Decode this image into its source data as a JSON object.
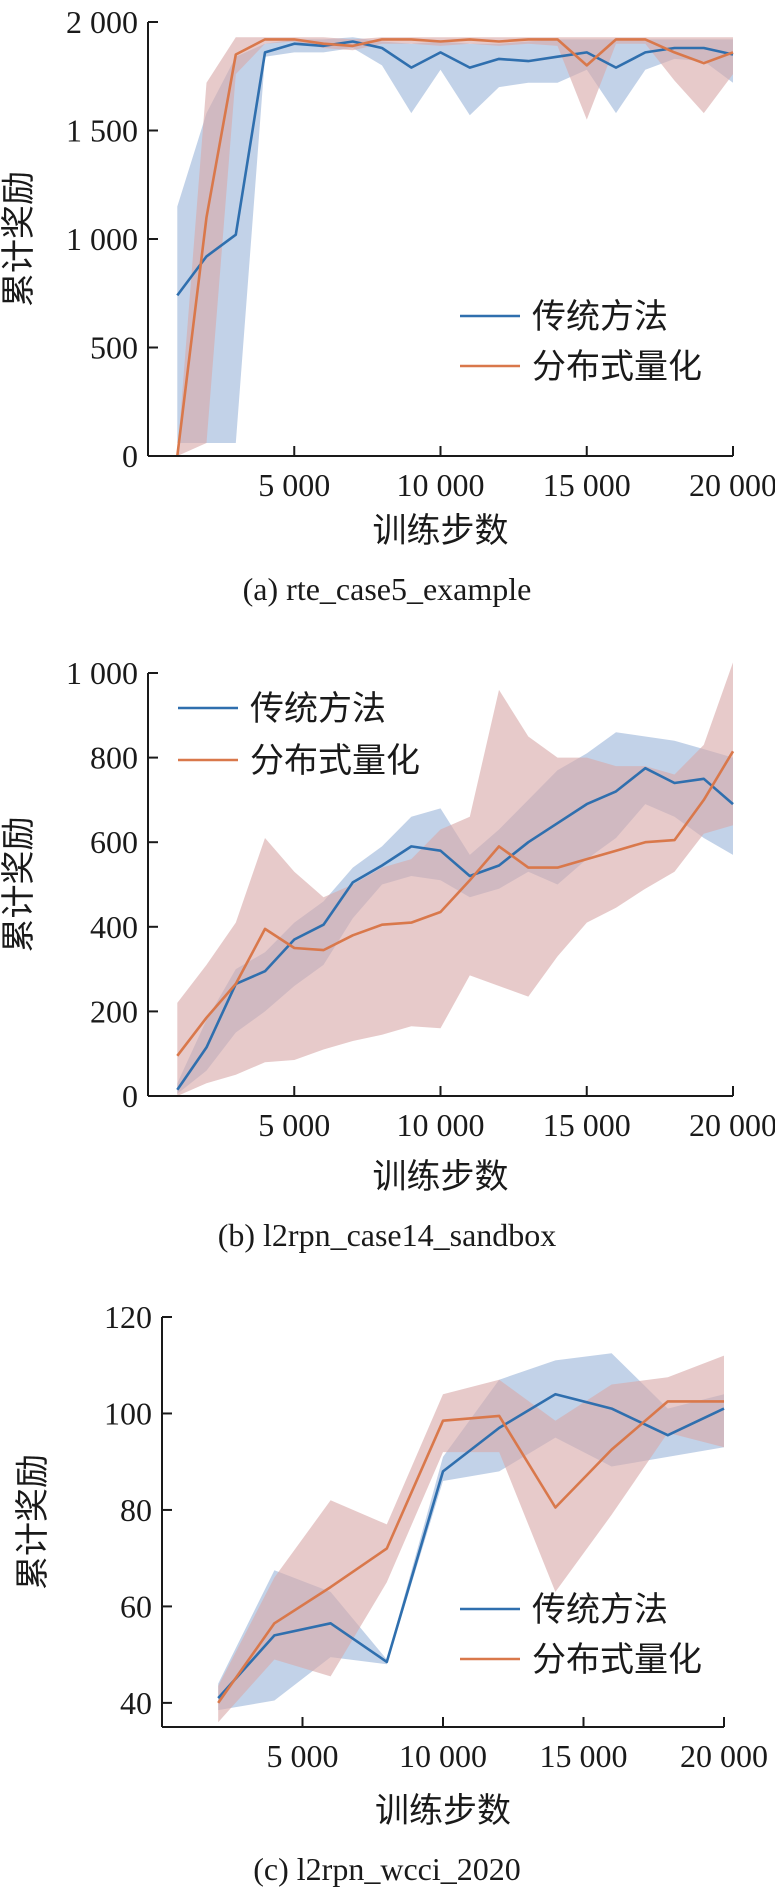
{
  "colors": {
    "traditional": "#2F6FAE",
    "traditional_band": "#9DB6DA",
    "distributional": "#D9784B",
    "distributional_band": "#D8AAAA",
    "axis": "#1a1a1a"
  },
  "chart_data": [
    {
      "type": "line",
      "caption": "(a) rte_case5_example",
      "xlabel": "训练步数",
      "ylabel": "累计奖励",
      "xlim": [
        0,
        20000
      ],
      "ylim": [
        0,
        2000
      ],
      "xticks": [
        5000,
        10000,
        15000,
        20000
      ],
      "xtick_labels": [
        "5 000",
        "10 000",
        "15 000",
        "20 000"
      ],
      "yticks": [
        0,
        500,
        1000,
        1500,
        2000
      ],
      "ytick_labels": [
        "0",
        "500",
        "1 000",
        "1 500",
        "2 000"
      ],
      "legend_position": "center-right",
      "series": [
        {
          "name": "传统方法",
          "x": [
            1000,
            2000,
            3000,
            4000,
            5000,
            6000,
            7000,
            8000,
            9000,
            10000,
            11000,
            12000,
            13000,
            14000,
            15000,
            16000,
            17000,
            18000,
            19000,
            20000
          ],
          "y": [
            740,
            920,
            1020,
            1860,
            1900,
            1890,
            1910,
            1880,
            1790,
            1860,
            1790,
            1830,
            1820,
            1840,
            1860,
            1790,
            1860,
            1880,
            1880,
            1850
          ],
          "lower": [
            60,
            60,
            60,
            1840,
            1860,
            1860,
            1880,
            1800,
            1580,
            1780,
            1570,
            1700,
            1720,
            1720,
            1780,
            1580,
            1780,
            1830,
            1820,
            1720
          ],
          "upper": [
            1150,
            1580,
            1840,
            1900,
            1920,
            1920,
            1930,
            1910,
            1900,
            1910,
            1900,
            1900,
            1910,
            1920,
            1920,
            1920,
            1920,
            1920,
            1920,
            1920
          ]
        },
        {
          "name": "分布式量化",
          "x": [
            1000,
            2000,
            3000,
            4000,
            5000,
            6000,
            7000,
            8000,
            9000,
            10000,
            11000,
            12000,
            13000,
            14000,
            15000,
            16000,
            17000,
            18000,
            19000,
            20000
          ],
          "y": [
            0,
            1100,
            1850,
            1920,
            1920,
            1900,
            1890,
            1920,
            1920,
            1910,
            1920,
            1910,
            1920,
            1920,
            1800,
            1920,
            1920,
            1860,
            1810,
            1860
          ],
          "lower": [
            0,
            60,
            1760,
            1900,
            1910,
            1880,
            1870,
            1900,
            1900,
            1890,
            1900,
            1890,
            1900,
            1890,
            1550,
            1900,
            1900,
            1730,
            1580,
            1760
          ],
          "upper": [
            0,
            1720,
            1930,
            1930,
            1930,
            1930,
            1920,
            1930,
            1930,
            1930,
            1930,
            1930,
            1930,
            1930,
            1930,
            1930,
            1930,
            1930,
            1930,
            1930
          ]
        }
      ]
    },
    {
      "type": "line",
      "caption": "(b) l2rpn_case14_sandbox",
      "xlabel": "训练步数",
      "ylabel": "累计奖励",
      "xlim": [
        0,
        20000
      ],
      "ylim": [
        0,
        1000
      ],
      "xticks": [
        5000,
        10000,
        15000,
        20000
      ],
      "xtick_labels": [
        "5 000",
        "10 000",
        "15 000",
        "20 000"
      ],
      "yticks": [
        0,
        200,
        400,
        600,
        800,
        1000
      ],
      "ytick_labels": [
        "0",
        "200",
        "400",
        "600",
        "800",
        "1 000"
      ],
      "legend_position": "top-left",
      "series": [
        {
          "name": "传统方法",
          "x": [
            1000,
            2000,
            3000,
            4000,
            5000,
            6000,
            7000,
            8000,
            9000,
            10000,
            11000,
            12000,
            13000,
            14000,
            15000,
            16000,
            17000,
            18000,
            19000,
            20000
          ],
          "y": [
            15,
            115,
            265,
            295,
            370,
            405,
            505,
            545,
            590,
            580,
            520,
            545,
            600,
            645,
            690,
            720,
            775,
            740,
            750,
            690
          ],
          "lower": [
            5,
            60,
            150,
            200,
            260,
            310,
            420,
            500,
            520,
            510,
            470,
            490,
            530,
            500,
            560,
            610,
            690,
            660,
            610,
            570
          ],
          "upper": [
            30,
            180,
            300,
            340,
            410,
            460,
            540,
            590,
            660,
            680,
            570,
            630,
            700,
            770,
            810,
            860,
            850,
            840,
            820,
            800
          ]
        },
        {
          "name": "分布式量化",
          "x": [
            1000,
            2000,
            3000,
            4000,
            5000,
            6000,
            7000,
            8000,
            9000,
            10000,
            11000,
            12000,
            13000,
            14000,
            15000,
            16000,
            17000,
            18000,
            19000,
            20000
          ],
          "y": [
            95,
            185,
            265,
            395,
            350,
            345,
            380,
            405,
            410,
            435,
            510,
            590,
            540,
            540,
            560,
            580,
            600,
            605,
            700,
            815
          ],
          "lower": [
            0,
            30,
            50,
            80,
            85,
            110,
            130,
            145,
            165,
            160,
            285,
            260,
            235,
            330,
            410,
            445,
            490,
            530,
            620,
            640
          ],
          "upper": [
            220,
            310,
            410,
            610,
            530,
            470,
            500,
            540,
            560,
            630,
            660,
            960,
            850,
            800,
            800,
            780,
            780,
            760,
            830,
            1025
          ]
        }
      ]
    },
    {
      "type": "line",
      "caption": "(c) l2rpn_wcci_2020",
      "xlabel": "训练步数",
      "ylabel": "累计奖励",
      "xlim": [
        0,
        20000
      ],
      "ylim": [
        35,
        120
      ],
      "xticks": [
        5000,
        10000,
        15000,
        20000
      ],
      "xtick_labels": [
        "5 000",
        "10 000",
        "15 000",
        "20 000"
      ],
      "yticks": [
        40,
        60,
        80,
        100,
        120
      ],
      "ytick_labels": [
        "40",
        "60",
        "80",
        "100",
        "120"
      ],
      "legend_position": "bottom-right",
      "series": [
        {
          "name": "传统方法",
          "x": [
            2000,
            4000,
            6000,
            8000,
            10000,
            12000,
            14000,
            16000,
            18000,
            20000
          ],
          "y": [
            41,
            54,
            56.5,
            48.5,
            88,
            97,
            104,
            101,
            95.5,
            101
          ],
          "lower": [
            38.5,
            40.5,
            49.5,
            48,
            86,
            88,
            95,
            89,
            91,
            93
          ],
          "upper": [
            44,
            67.5,
            63,
            49,
            91,
            107,
            111,
            112.5,
            101,
            104
          ]
        },
        {
          "name": "分布式量化",
          "x": [
            2000,
            4000,
            6000,
            8000,
            10000,
            12000,
            14000,
            16000,
            18000,
            20000
          ],
          "y": [
            40,
            56.5,
            64,
            72,
            98.5,
            99.5,
            80.5,
            92.5,
            102.5,
            102.5
          ],
          "lower": [
            36,
            49,
            45.5,
            65,
            92,
            92,
            63,
            79,
            96,
            93
          ],
          "upper": [
            43.5,
            66,
            82,
            77,
            104,
            107,
            98.5,
            106,
            107.5,
            112
          ]
        }
      ]
    }
  ]
}
